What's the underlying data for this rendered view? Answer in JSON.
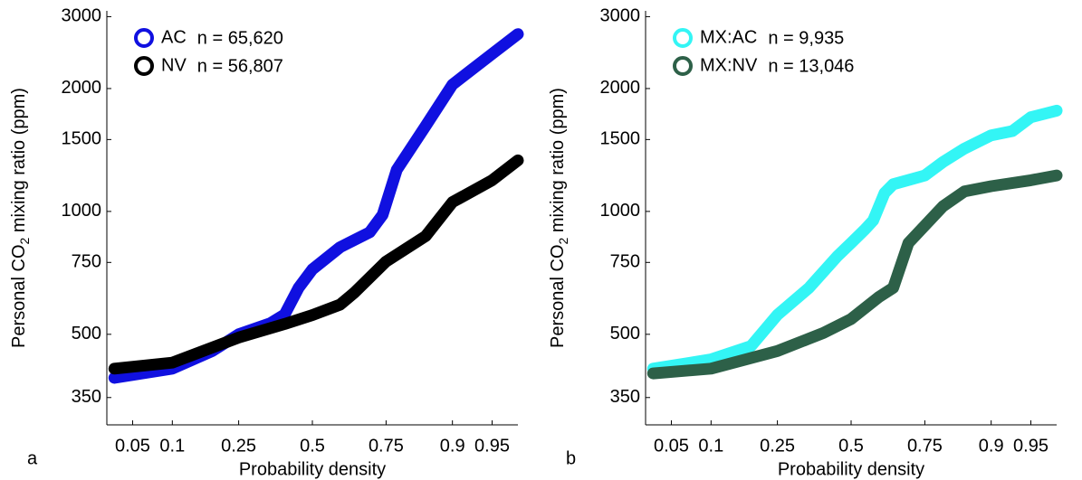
{
  "chart_data": [
    {
      "type": "line",
      "panel_label": "a",
      "xscale": "probit",
      "yscale": "log",
      "xlabel": "Probability density",
      "ylabel": {
        "before": "Personal CO",
        "sub": "2",
        "after": " mixing ratio (ppm)"
      },
      "xlim": [
        0.03,
        0.97
      ],
      "ylim": [
        300,
        3100
      ],
      "xticks": [
        0.05,
        0.1,
        0.25,
        0.5,
        0.75,
        0.9,
        0.95
      ],
      "yticks": [
        350,
        500,
        750,
        1000,
        1500,
        2000,
        3000
      ],
      "series": [
        {
          "name": "AC",
          "n_label": "n = 65,620",
          "color": "#1010e0",
          "x": [
            0.035,
            0.1,
            0.18,
            0.25,
            0.35,
            0.4,
            0.45,
            0.5,
            0.6,
            0.7,
            0.74,
            0.78,
            0.85,
            0.9,
            0.95,
            0.97
          ],
          "values": [
            391,
            412,
            455,
            500,
            532,
            559,
            650,
            721,
            817,
            889,
            981,
            1265,
            1620,
            2045,
            2432,
            2719
          ]
        },
        {
          "name": "NV",
          "n_label": "n = 56,807",
          "color": "#000000",
          "x": [
            0.035,
            0.1,
            0.25,
            0.4,
            0.5,
            0.6,
            0.65,
            0.75,
            0.85,
            0.9,
            0.95,
            0.97
          ],
          "values": [
            412,
            426,
            491,
            530,
            557,
            591,
            633,
            754,
            870,
            1054,
            1192,
            1334
          ]
        }
      ]
    },
    {
      "type": "line",
      "panel_label": "b",
      "xscale": "probit",
      "yscale": "log",
      "xlabel": "Probability density",
      "ylabel": {
        "before": "Personal CO",
        "sub": "2",
        "after": " mixing ratio (ppm)"
      },
      "xlim": [
        0.03,
        0.97
      ],
      "ylim": [
        300,
        3100
      ],
      "xticks": [
        0.05,
        0.1,
        0.25,
        0.5,
        0.75,
        0.9,
        0.95
      ],
      "yticks": [
        350,
        500,
        750,
        1000,
        1500,
        2000,
        3000
      ],
      "series": [
        {
          "name": "MX:AC",
          "n_label": "n = 9,935",
          "color": "#33f5f5",
          "x": [
            0.035,
            0.1,
            0.18,
            0.25,
            0.35,
            0.45,
            0.5,
            0.55,
            0.58,
            0.62,
            0.65,
            0.75,
            0.8,
            0.85,
            0.9,
            0.93,
            0.95,
            0.97
          ],
          "values": [
            412,
            434,
            468,
            558,
            650,
            777,
            837,
            903,
            950,
            1109,
            1166,
            1225,
            1322,
            1425,
            1536,
            1573,
            1701,
            1766
          ]
        },
        {
          "name": "MX:NV",
          "n_label": "n = 13,046",
          "color": "#2d6048",
          "x": [
            0.035,
            0.1,
            0.25,
            0.4,
            0.5,
            0.6,
            0.65,
            0.7,
            0.75,
            0.8,
            0.85,
            0.9,
            0.95,
            0.97
          ],
          "values": [
            401,
            412,
            455,
            504,
            545,
            617,
            650,
            837,
            923,
            1030,
            1119,
            1153,
            1192,
            1225
          ]
        }
      ]
    }
  ]
}
